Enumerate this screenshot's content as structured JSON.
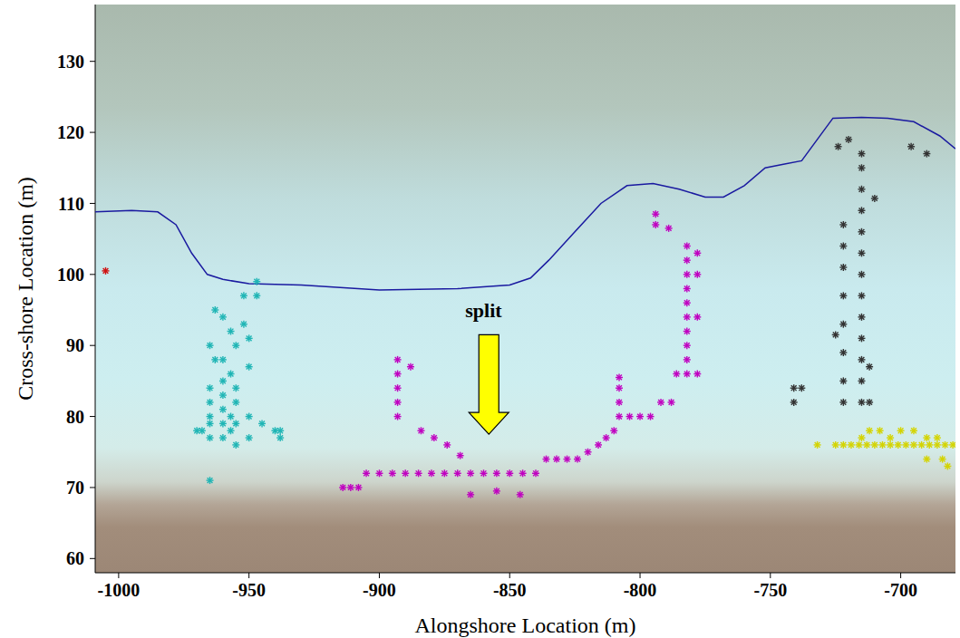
{
  "chart_data": {
    "type": "scatter",
    "x_label": "Alongshore Location (m)",
    "y_label": "Cross-shore Location (m)",
    "xlim": [
      -1009,
      -679
    ],
    "xticks": [
      -1000,
      -950,
      -900,
      -850,
      -800,
      -750,
      -700
    ],
    "ylim": [
      58,
      138
    ],
    "yticks": [
      60,
      70,
      80,
      90,
      100,
      110,
      120,
      130
    ],
    "grid": false,
    "series": [
      {
        "type": "line",
        "color": "#1a1aa0",
        "line_style": "solid",
        "x": [
          -1009,
          -995,
          -985,
          -978,
          -972,
          -966,
          -960,
          -950,
          -930,
          -900,
          -870,
          -850,
          -842,
          -835,
          -825,
          -815,
          -805,
          -795,
          -785,
          -775,
          -768,
          -760,
          -752,
          -745,
          -738,
          -732,
          -726,
          -715,
          -705,
          -695,
          -685,
          -679
        ],
        "y": [
          108.8,
          109,
          108.8,
          107,
          103,
          100,
          99.3,
          98.7,
          98.5,
          97.8,
          98,
          98.5,
          99.5,
          102,
          106,
          110,
          112.5,
          112.8,
          112,
          110.9,
          110.9,
          112.5,
          115,
          115.5,
          116,
          119,
          122,
          122.1,
          122,
          121.5,
          119.5,
          117.7
        ]
      },
      {
        "type": "scatter",
        "color": "#d01010",
        "marker": "asterisk",
        "x": [
          -1005
        ],
        "y": [
          100.5
        ]
      },
      {
        "type": "scatter",
        "color": "#1fb5b5",
        "marker": "asterisk",
        "x": [
          -965,
          -965,
          -965,
          -965,
          -965,
          -965,
          -965,
          -963,
          -963,
          -960,
          -960,
          -960,
          -960,
          -960,
          -960,
          -960,
          -957,
          -957,
          -957,
          -957,
          -955,
          -955,
          -955,
          -955,
          -955,
          -952,
          -952,
          -950,
          -950,
          -950,
          -950,
          -947,
          -947,
          -945,
          -940,
          -938,
          -938,
          -968,
          -970
        ],
        "y": [
          71,
          77,
          79,
          80,
          82,
          84,
          90,
          88,
          95,
          77,
          79,
          81,
          83,
          85,
          88,
          94,
          78,
          80,
          86,
          92,
          76,
          79,
          82,
          84,
          90,
          93,
          97,
          77,
          80,
          87,
          91,
          97,
          99,
          79,
          78,
          77,
          78,
          78,
          78
        ]
      },
      {
        "type": "scatter",
        "color": "#c000c0",
        "marker": "asterisk",
        "x": [
          -914,
          -911,
          -908,
          -905,
          -900,
          -895,
          -890,
          -885,
          -880,
          -875,
          -870,
          -865,
          -860,
          -855,
          -850,
          -845,
          -840,
          -836,
          -832,
          -828,
          -824,
          -820,
          -816,
          -813,
          -810,
          -808,
          -808,
          -808,
          -808,
          -804,
          -800,
          -796,
          -792,
          -788,
          -782,
          -782,
          -782,
          -782,
          -782,
          -782,
          -782,
          -782,
          -782,
          -782,
          -778,
          -778,
          -778,
          -778,
          -786,
          -794,
          -794,
          -789,
          -893,
          -893,
          -893,
          -893,
          -893,
          -888,
          -884,
          -879,
          -874,
          -869,
          -865,
          -855,
          -846
        ],
        "y": [
          70,
          70,
          70,
          72,
          72,
          72,
          72,
          72,
          72,
          72,
          72,
          72,
          72,
          72,
          72,
          72,
          72,
          74,
          74,
          74,
          74,
          75,
          76,
          77,
          78,
          80,
          82,
          84,
          85.5,
          80,
          80,
          80,
          82,
          82,
          86,
          88,
          90,
          92,
          94,
          96,
          98,
          100,
          102,
          104,
          86,
          94,
          100,
          103,
          86,
          107,
          108.5,
          106.5,
          80,
          82,
          84,
          86,
          88,
          87,
          78,
          77,
          76,
          74.5,
          69,
          69.5,
          69
        ]
      },
      {
        "type": "scatter",
        "color": "#333333",
        "marker": "asterisk",
        "x": [
          -715,
          -715,
          -715,
          -715,
          -715,
          -715,
          -715,
          -715,
          -715,
          -715,
          -715,
          -715,
          -715,
          -722,
          -722,
          -722,
          -722,
          -722,
          -722,
          -722,
          -722,
          -741,
          -738,
          -741,
          -725,
          -712,
          -712,
          -710,
          -724,
          -720,
          -696,
          -690
        ],
        "y": [
          82,
          85,
          88,
          91,
          94,
          97,
          100,
          103,
          106,
          109,
          112,
          115,
          117,
          82,
          85,
          89,
          93,
          97,
          101,
          104,
          107,
          84,
          84,
          82,
          91.5,
          82,
          87,
          110.7,
          118,
          119,
          118,
          117
        ]
      },
      {
        "type": "scatter",
        "color": "#d4d400",
        "marker": "asterisk",
        "x": [
          -732,
          -725,
          -722,
          -719,
          -716,
          -713,
          -710,
          -707,
          -704,
          -701,
          -698,
          -695,
          -692,
          -689,
          -686,
          -683,
          -680,
          -712,
          -708,
          -700,
          -695,
          -715,
          -704,
          -690,
          -686,
          -690,
          -684,
          -682
        ],
        "y": [
          76,
          76,
          76,
          76,
          76,
          76,
          76,
          76,
          76,
          76,
          76,
          76,
          76,
          76,
          76,
          76,
          76,
          78,
          78,
          78,
          78,
          77,
          77,
          77,
          77,
          74,
          74,
          73
        ]
      }
    ],
    "annotations": [
      {
        "text": "split",
        "x": -860,
        "y": 95,
        "arrow_from": [
          -858,
          91.5
        ],
        "arrow_to": [
          -858,
          77.5
        ],
        "color": "#ffff00"
      }
    ]
  }
}
